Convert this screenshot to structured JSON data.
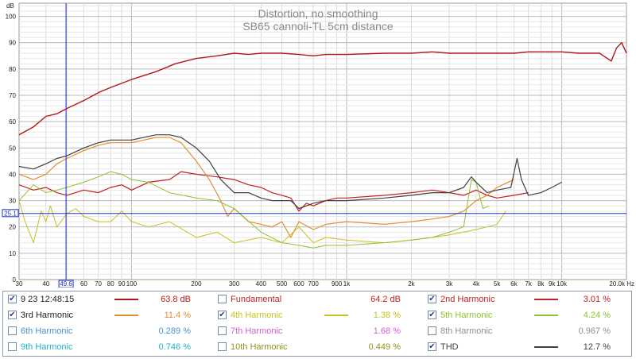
{
  "chart_data": {
    "type": "line",
    "title": "Distortion, no smoothing",
    "subtitle": "SB65 cannoli-TL 5cm distance",
    "ylabel": "dB",
    "xunit": "Hz",
    "xscale": "log",
    "xlim": [
      30,
      20000
    ],
    "ylim": [
      0,
      105
    ],
    "y_ticks": [
      0,
      10,
      20,
      30,
      40,
      50,
      60,
      70,
      80,
      90,
      100
    ],
    "x_tick_labels": [
      {
        "value": 30,
        "label": "30"
      },
      {
        "value": 40,
        "label": "40"
      },
      {
        "value": 60,
        "label": "60"
      },
      {
        "value": 70,
        "label": "70"
      },
      {
        "value": 80,
        "label": "80"
      },
      {
        "value": 90,
        "label": "90"
      },
      {
        "value": 100,
        "label": "100"
      },
      {
        "value": 200,
        "label": "200"
      },
      {
        "value": 300,
        "label": "300"
      },
      {
        "value": 400,
        "label": "400"
      },
      {
        "value": 500,
        "label": "500"
      },
      {
        "value": 600,
        "label": "600"
      },
      {
        "value": 700,
        "label": "700"
      },
      {
        "value": 900,
        "label": "900"
      },
      {
        "value": 1000,
        "label": "1k"
      },
      {
        "value": 2000,
        "label": "2k"
      },
      {
        "value": 3000,
        "label": "3k"
      },
      {
        "value": 4000,
        "label": "4k"
      },
      {
        "value": 5000,
        "label": "5k"
      },
      {
        "value": 6000,
        "label": "6k"
      },
      {
        "value": 7000,
        "label": "7k"
      },
      {
        "value": 8000,
        "label": "8k"
      },
      {
        "value": 9000,
        "label": "9k"
      },
      {
        "value": 10000,
        "label": "10k"
      },
      {
        "value": 20000,
        "label": "20.0k Hz"
      }
    ],
    "grid": true,
    "cursor": {
      "x": 49.6,
      "x_label": "49.6",
      "y": 25.1,
      "y_label": "25.1"
    },
    "series": [
      {
        "name": "9 23 12:48:15",
        "color": "#b01818",
        "width": 1.4,
        "x": [
          30,
          35,
          40,
          45,
          50,
          60,
          70,
          80,
          100,
          130,
          160,
          200,
          250,
          300,
          350,
          400,
          500,
          600,
          700,
          800,
          1000,
          1500,
          2000,
          2500,
          3000,
          4000,
          5000,
          6000,
          7000,
          8000,
          10000,
          12000,
          15000,
          17000,
          18000,
          19000,
          20000
        ],
        "y": [
          55,
          58,
          62,
          63,
          65,
          68,
          71,
          73,
          76,
          79,
          82,
          84,
          85,
          86,
          85.5,
          86,
          86,
          85.5,
          85,
          85.5,
          85.5,
          86,
          86,
          86.5,
          86,
          86,
          86,
          86,
          86.5,
          86.5,
          86.5,
          86,
          86,
          83,
          88,
          90,
          86
        ]
      },
      {
        "name": "2nd Harmonic",
        "color": "#c02020",
        "width": 1.2,
        "x": [
          30,
          35,
          40,
          45,
          50,
          60,
          70,
          80,
          90,
          100,
          120,
          150,
          170,
          200,
          250,
          300,
          350,
          400,
          450,
          500,
          550,
          600,
          650,
          700,
          800,
          900,
          1000,
          1500,
          2000,
          2500,
          3000,
          3500,
          4000,
          4500,
          5000,
          6000,
          7000
        ],
        "y": [
          36,
          34,
          35,
          33,
          32,
          34,
          33,
          35,
          36,
          34,
          37,
          38,
          41,
          40,
          39,
          38,
          36,
          35,
          33,
          32,
          31,
          26,
          29,
          28,
          30,
          31,
          31,
          32,
          33,
          34,
          33,
          32,
          34,
          32,
          31,
          32,
          33
        ]
      },
      {
        "name": "3rd Harmonic",
        "color": "#e09030",
        "width": 1.2,
        "x": [
          30,
          35,
          40,
          45,
          50,
          60,
          70,
          80,
          100,
          130,
          150,
          170,
          200,
          230,
          260,
          280,
          300,
          350,
          400,
          450,
          500,
          550,
          600,
          700,
          800,
          1000,
          1500,
          2000,
          2500,
          3000,
          3500,
          4000,
          4500,
          5000,
          6000
        ],
        "y": [
          40,
          38,
          40,
          44,
          46,
          49,
          51,
          52,
          52,
          54,
          54,
          52,
          45,
          38,
          30,
          24,
          27,
          22,
          21,
          20,
          22,
          16,
          22,
          19,
          21,
          22,
          21,
          22,
          23,
          24,
          26,
          30,
          32,
          35,
          38
        ]
      },
      {
        "name": "4th Harmonic",
        "color": "#c8c020",
        "width": 1.0,
        "x": [
          30,
          32,
          35,
          38,
          40,
          42,
          45,
          50,
          55,
          60,
          70,
          80,
          90,
          100,
          120,
          150,
          200,
          250,
          300,
          400,
          500,
          600,
          700,
          800,
          1000,
          1500,
          2000,
          2500,
          3000,
          3500,
          4000,
          4500,
          5000,
          5500
        ],
        "y": [
          30,
          22,
          14,
          26,
          22,
          28,
          20,
          25,
          27,
          24,
          22,
          22,
          26,
          22,
          20,
          22,
          16,
          18,
          14,
          16,
          14,
          20,
          14,
          16,
          15,
          14,
          15,
          16,
          17,
          18,
          19,
          20,
          21,
          26
        ]
      },
      {
        "name": "5th Harmonic",
        "color": "#90c030",
        "width": 1.0,
        "x": [
          30,
          35,
          40,
          45,
          50,
          60,
          70,
          80,
          90,
          100,
          120,
          150,
          200,
          250,
          300,
          400,
          500,
          600,
          700,
          800,
          1000,
          1500,
          2000,
          2500,
          3000,
          3500,
          3800,
          4000,
          4300,
          4600
        ],
        "y": [
          30,
          36,
          33,
          34,
          35,
          37,
          39,
          41,
          40,
          38,
          37,
          33,
          31,
          30,
          27,
          18,
          14,
          13,
          12,
          13,
          13,
          14,
          15,
          16,
          18,
          20,
          38,
          37,
          27,
          28
        ]
      },
      {
        "name": "THD",
        "color": "#404040",
        "width": 1.2,
        "x": [
          30,
          35,
          40,
          45,
          50,
          60,
          70,
          80,
          100,
          130,
          150,
          170,
          200,
          230,
          260,
          300,
          350,
          400,
          450,
          500,
          550,
          600,
          650,
          700,
          800,
          1000,
          1500,
          2000,
          2500,
          3000,
          3500,
          3800,
          4000,
          4500,
          5000,
          5800,
          6200,
          6500,
          7000,
          8000,
          9000,
          10000
        ],
        "y": [
          43,
          42,
          44,
          46,
          47,
          50,
          52,
          53,
          53,
          55,
          55,
          54,
          50,
          45,
          38,
          33,
          33,
          31,
          30,
          30,
          30,
          27,
          28,
          29,
          30,
          30,
          31,
          32,
          33,
          33,
          35,
          39,
          37,
          33,
          34,
          35,
          46,
          38,
          32,
          33,
          35,
          37
        ]
      }
    ]
  },
  "legend": {
    "rows": [
      [
        {
          "label": "9 23 12:48:15",
          "checked": true,
          "color": "#b01818",
          "value": "63.8 dB"
        },
        {
          "label": "Fundamental",
          "checked": false,
          "color": "#c02020",
          "value": "64.2 dB"
        },
        {
          "label": "2nd Harmonic",
          "checked": true,
          "color": "#c02020",
          "value": "3.01 %"
        }
      ],
      [
        {
          "label": "3rd Harmonic",
          "checked": true,
          "color": "#e09030",
          "value": "11.4 %"
        },
        {
          "label": "4th Harmonic",
          "checked": true,
          "color": "#c8c020",
          "value": "1.38 %"
        },
        {
          "label": "5th Harmonic",
          "checked": true,
          "color": "#90c030",
          "value": "4.24 %"
        }
      ],
      [
        {
          "label": "6th Harmonic",
          "checked": false,
          "color": "#4a90d0",
          "value": "0.289 %"
        },
        {
          "label": "7th Harmonic",
          "checked": false,
          "color": "#d060d0",
          "value": "1.68 %"
        },
        {
          "label": "8th Harmonic",
          "checked": false,
          "color": "#909090",
          "value": "0.967 %"
        }
      ],
      [
        {
          "label": "9th Harmonic",
          "checked": false,
          "color": "#20b0c0",
          "value": "0.746 %"
        },
        {
          "label": "10th Harmonic",
          "checked": false,
          "color": "#909020",
          "value": "0.449 %"
        },
        {
          "label": "THD",
          "checked": true,
          "color": "#404040",
          "value": "12.7 %"
        }
      ]
    ]
  }
}
